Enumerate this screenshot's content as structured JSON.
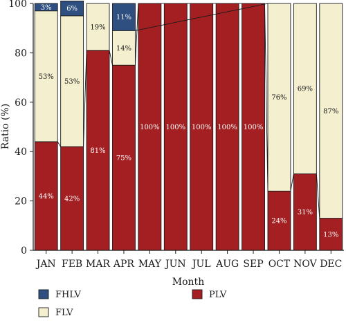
{
  "chart_data": {
    "type": "bar",
    "stacked": true,
    "categories": [
      "JAN",
      "FEB",
      "MAR",
      "APR",
      "MAY",
      "JUN",
      "JUL",
      "AUG",
      "SEP",
      "OCT",
      "NOV",
      "DEC"
    ],
    "series": [
      {
        "name": "PLV",
        "color": "#a31f22",
        "values": [
          44,
          42,
          81,
          75,
          100,
          100,
          100,
          100,
          100,
          24,
          31,
          13
        ],
        "labels": [
          "44%",
          "42%",
          "81%",
          "75%",
          "100%",
          "100%",
          "100%",
          "100%",
          "100%",
          "24%",
          "31%",
          "13%"
        ]
      },
      {
        "name": "FLV",
        "color": "#f3efcf",
        "values": [
          53,
          53,
          19,
          14,
          0,
          0,
          0,
          0,
          0,
          76,
          69,
          87
        ],
        "labels": [
          "53%",
          "53%",
          "19%",
          "14%",
          "",
          "",
          "",
          "",
          "",
          "76%",
          "69%",
          "87%"
        ]
      },
      {
        "name": "FHLV",
        "color": "#2e4f80",
        "values": [
          3,
          6,
          0,
          11,
          0,
          0,
          0,
          0,
          0,
          0,
          0,
          0
        ],
        "labels": [
          "3%",
          "6%",
          "",
          "11%",
          "",
          "",
          "",
          "",
          "",
          "",
          "",
          ""
        ]
      }
    ],
    "xlabel": "Month",
    "ylabel": "Ratio (%)",
    "ylim": [
      0,
      100
    ],
    "yticks": [
      0,
      20,
      40,
      60,
      80,
      100
    ],
    "grid": false,
    "legend": {
      "position": "bottom",
      "order": [
        "FHLV",
        "PLV",
        "FLV"
      ]
    }
  }
}
